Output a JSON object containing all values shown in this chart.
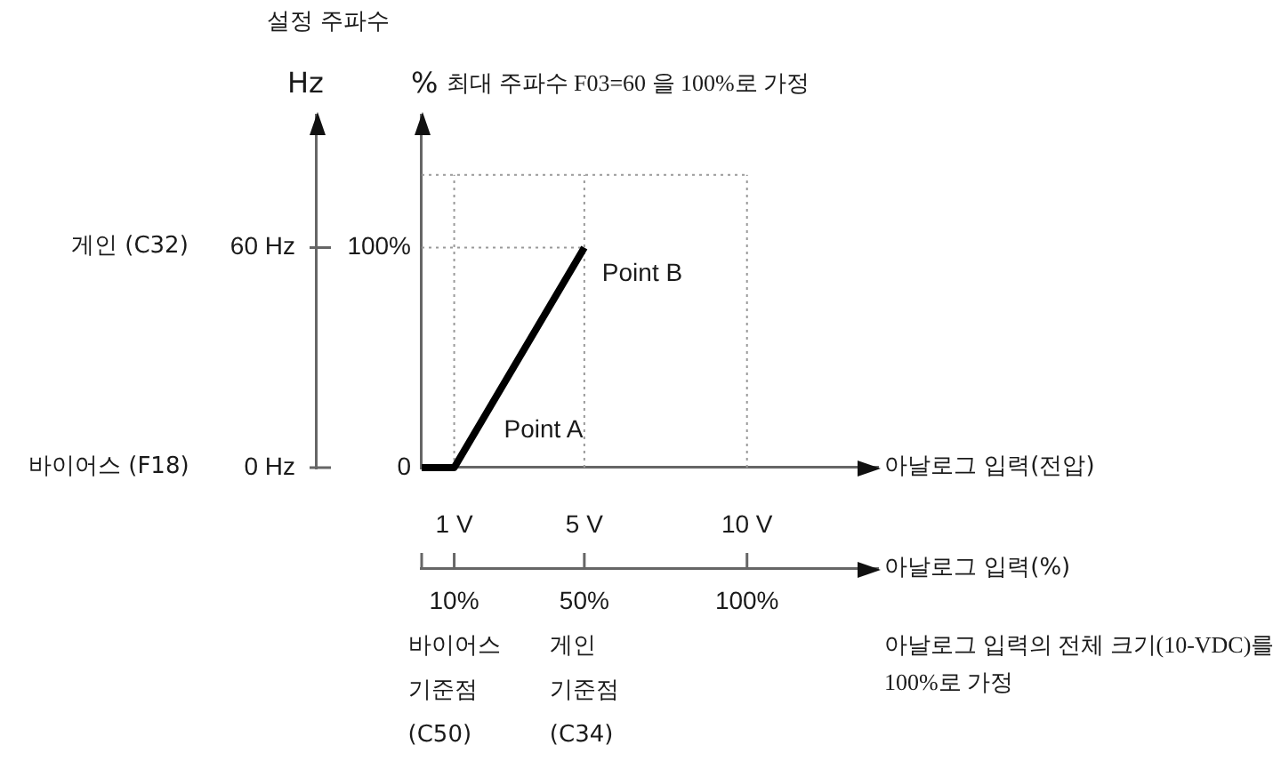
{
  "chart_data": {
    "type": "line",
    "title": "설정 주파수",
    "subtitle": "최대 주파수 F03=60 을 100%로 가정",
    "ylabel": "%",
    "y2label": "Hz",
    "xlabel": "아날로그 입력(전압)",
    "x2label": "아날로그 입력(%)",
    "x": [
      0,
      1,
      5
    ],
    "series": [
      {
        "color": "#000000",
        "values": [
          0,
          0,
          100
        ]
      }
    ],
    "xlim": [
      0,
      14
    ],
    "xticks": [
      {
        "value": 1,
        "label": "1 V"
      },
      {
        "value": 5,
        "label": "5 V"
      },
      {
        "value": 10,
        "label": "10 V"
      }
    ],
    "x2lim": [
      0,
      140
    ],
    "x2ticks": [
      {
        "value": 0,
        "label": null
      },
      {
        "value": 10,
        "label": "10%"
      },
      {
        "value": 50,
        "label": "50%"
      },
      {
        "value": 100,
        "label": "100%"
      }
    ],
    "ylim": [
      0,
      160
    ],
    "yticks": [
      0,
      {
        "value": 100,
        "label": "100%"
      }
    ],
    "y2lim": [
      0,
      96
    ],
    "y2ticks": [
      {
        "value": 0,
        "label": "0 Hz"
      },
      {
        "value": 60,
        "label": "60 Hz"
      }
    ],
    "ref_lines": [
      {
        "axis": "x",
        "value": 1,
        "color": "#999999",
        "line_style": "dotted"
      },
      {
        "axis": "x",
        "value": 5,
        "color": "#999999",
        "line_style": "dotted"
      },
      {
        "axis": "x",
        "value": 10,
        "color": "#999999",
        "line_style": "dotted"
      },
      {
        "axis": "y",
        "value": 100,
        "color": "#999999",
        "line_style": "dotted"
      },
      {
        "axis": "y",
        "value": 133,
        "color": "#999999",
        "line_style": "dotted"
      }
    ],
    "annotations": [
      "게인 (C32)",
      "바이어스 (F18)",
      {
        "text": "Point A",
        "x": 1,
        "y": 0
      },
      {
        "text": "Point B",
        "x": 5,
        "y": 100
      },
      "바이어스\n기준점\n(C50)",
      "게인\n기준점\n(C34)",
      "아날로그 입력의 전체 크기(10-VDC)를\n100%로 가정"
    ]
  }
}
